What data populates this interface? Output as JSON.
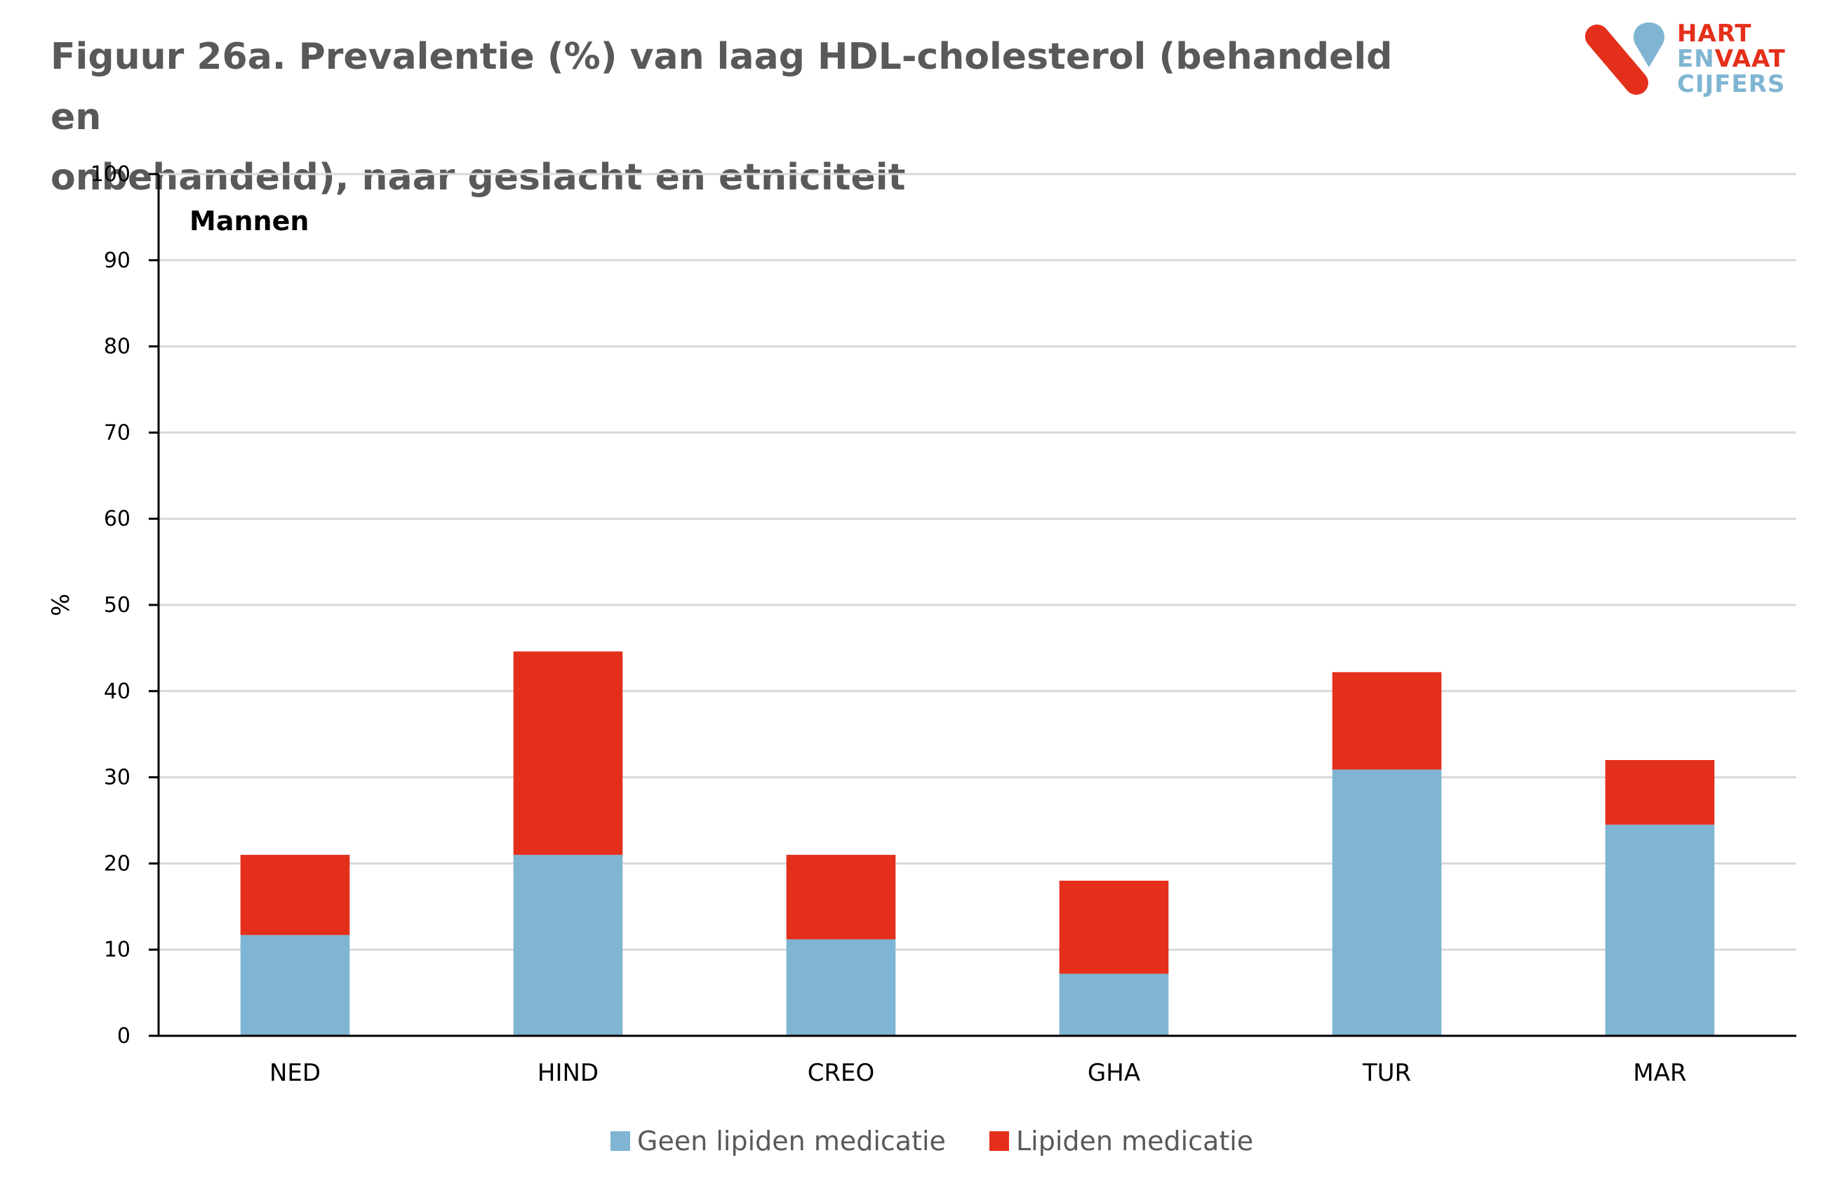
{
  "title_line1": "Figuur 26a. Prevalentie (%) van laag  HDL-cholesterol (behandeld en",
  "title_line2": "onbehandeld), naar geslacht en etniciteit",
  "logo": {
    "line1": "HART",
    "line2a": "EN",
    "line2b": "VAAT",
    "line3": "CIJFERS",
    "red": "#e42f1b",
    "blue": "#7fb5d2"
  },
  "chart_data": {
    "type": "bar",
    "stacked": true,
    "panel_label": "Mannen",
    "categories": [
      "NED",
      "HIND",
      "CREO",
      "GHA",
      "TUR",
      "MAR"
    ],
    "series": [
      {
        "name": "Geen lipiden medicatie",
        "color": "#7fb5d2",
        "values": [
          11.7,
          21.0,
          11.2,
          7.2,
          30.9,
          24.5
        ]
      },
      {
        "name": "Lipiden medicatie",
        "color": "#e42f1b",
        "values": [
          9.3,
          23.6,
          9.8,
          10.8,
          11.3,
          7.5
        ]
      }
    ],
    "ylabel": "%",
    "xlabel": "",
    "ylim": [
      0,
      100
    ],
    "yticks": [
      0,
      10,
      20,
      30,
      40,
      50,
      60,
      70,
      80,
      90,
      100
    ],
    "grid": true,
    "legend_position": "bottom"
  }
}
